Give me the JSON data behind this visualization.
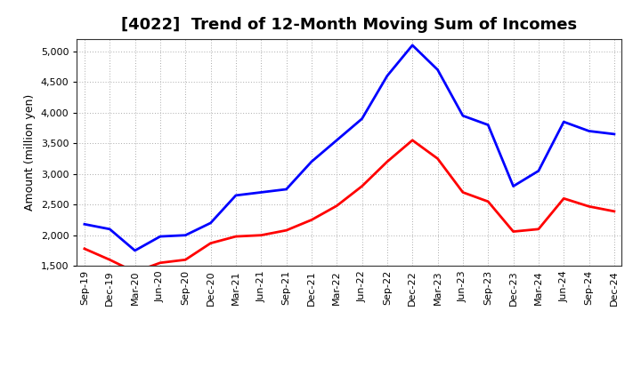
{
  "title": "[4022]  Trend of 12-Month Moving Sum of Incomes",
  "ylabel": "Amount (million yen)",
  "x_labels": [
    "Sep-19",
    "Dec-19",
    "Mar-20",
    "Jun-20",
    "Sep-20",
    "Dec-20",
    "Mar-21",
    "Jun-21",
    "Sep-21",
    "Dec-21",
    "Mar-22",
    "Jun-22",
    "Sep-22",
    "Dec-22",
    "Mar-23",
    "Jun-23",
    "Sep-23",
    "Dec-23",
    "Mar-24",
    "Jun-24",
    "Sep-24",
    "Dec-24"
  ],
  "ordinary_income": [
    2180,
    2100,
    1750,
    1980,
    2000,
    2200,
    2650,
    2700,
    2750,
    3200,
    3550,
    3900,
    4600,
    5100,
    4700,
    3950,
    3800,
    2800,
    3050,
    3850,
    3700,
    3650
  ],
  "net_income": [
    1780,
    1600,
    1400,
    1550,
    1600,
    1870,
    1980,
    2000,
    2080,
    2250,
    2480,
    2800,
    3200,
    3550,
    3250,
    2700,
    2550,
    2060,
    2100,
    2600,
    2470,
    2390
  ],
  "ordinary_color": "#0000FF",
  "net_color": "#FF0000",
  "ylim_min": 1500,
  "ylim_max": 5200,
  "yticks": [
    1500,
    2000,
    2500,
    3000,
    3500,
    4000,
    4500,
    5000
  ],
  "background_color": "#FFFFFF",
  "plot_bg_color": "#FFFFFF",
  "grid_color": "#AAAAAA",
  "line_width": 2.0,
  "title_fontsize": 13,
  "ylabel_fontsize": 9,
  "tick_fontsize": 8,
  "legend_fontsize": 9
}
